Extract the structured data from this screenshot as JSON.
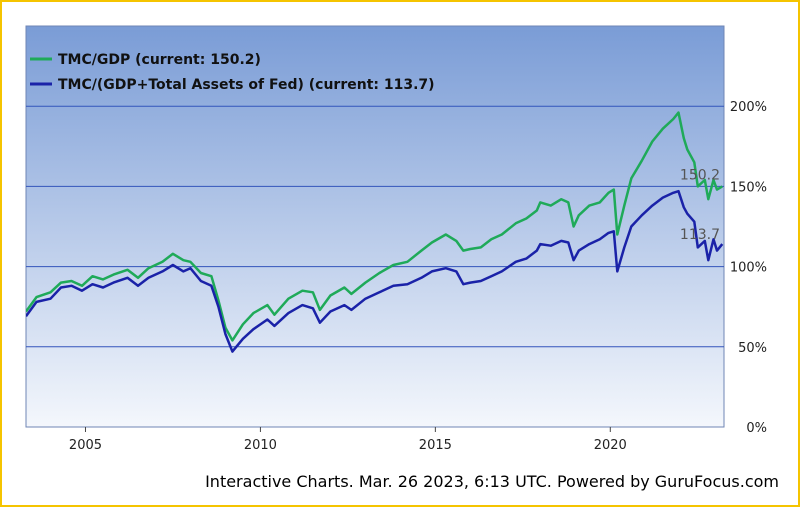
{
  "chart_data": {
    "type": "line",
    "credit": "Interactive Charts. Mar. 26 2023, 6:13 UTC. Powered by GuruFocus.com",
    "colors": {
      "tmc_gdp": "#1faa59",
      "tmc_gdp_fed": "#1a22a8",
      "gridline": "#3355bb",
      "plot_top": "#7a9cd6",
      "plot_bottom": "#f4f7fc",
      "border": "#f5c400"
    },
    "x_ticks": [
      2005,
      2010,
      2015,
      2020
    ],
    "y_ticks": [
      {
        "value": 0,
        "label": "0%"
      },
      {
        "value": 50,
        "label": "50%"
      },
      {
        "value": 100,
        "label": "100%"
      },
      {
        "value": 150,
        "label": "150%"
      },
      {
        "value": 200,
        "label": "200%"
      }
    ],
    "xlim": [
      2003.3,
      2023.25
    ],
    "ylim": [
      0,
      250
    ],
    "grid": true,
    "legend_position": "top-left",
    "series": [
      {
        "name": "TMC/GDP (current: 150.2)",
        "current": "150.2",
        "points": [
          [
            2003.3,
            72
          ],
          [
            2003.6,
            81
          ],
          [
            2004.0,
            84
          ],
          [
            2004.3,
            90
          ],
          [
            2004.6,
            91
          ],
          [
            2004.9,
            88
          ],
          [
            2005.2,
            94
          ],
          [
            2005.5,
            92
          ],
          [
            2005.8,
            95
          ],
          [
            2006.2,
            98
          ],
          [
            2006.5,
            93
          ],
          [
            2006.8,
            99
          ],
          [
            2007.2,
            103
          ],
          [
            2007.5,
            108
          ],
          [
            2007.8,
            104
          ],
          [
            2008.0,
            103
          ],
          [
            2008.3,
            96
          ],
          [
            2008.6,
            94
          ],
          [
            2008.8,
            79
          ],
          [
            2009.0,
            62
          ],
          [
            2009.2,
            54
          ],
          [
            2009.5,
            64
          ],
          [
            2009.8,
            71
          ],
          [
            2010.2,
            76
          ],
          [
            2010.4,
            70
          ],
          [
            2010.8,
            80
          ],
          [
            2011.2,
            85
          ],
          [
            2011.5,
            84
          ],
          [
            2011.7,
            73
          ],
          [
            2012.0,
            82
          ],
          [
            2012.4,
            87
          ],
          [
            2012.6,
            83
          ],
          [
            2013.0,
            90
          ],
          [
            2013.4,
            96
          ],
          [
            2013.8,
            101
          ],
          [
            2014.2,
            103
          ],
          [
            2014.6,
            110
          ],
          [
            2014.9,
            115
          ],
          [
            2015.3,
            120
          ],
          [
            2015.6,
            116
          ],
          [
            2015.8,
            110
          ],
          [
            2016.0,
            111
          ],
          [
            2016.3,
            112
          ],
          [
            2016.6,
            117
          ],
          [
            2016.9,
            120
          ],
          [
            2017.3,
            127
          ],
          [
            2017.6,
            130
          ],
          [
            2017.9,
            135
          ],
          [
            2018.0,
            140
          ],
          [
            2018.3,
            138
          ],
          [
            2018.6,
            142
          ],
          [
            2018.8,
            140
          ],
          [
            2018.95,
            125
          ],
          [
            2019.1,
            132
          ],
          [
            2019.4,
            138
          ],
          [
            2019.7,
            140
          ],
          [
            2019.95,
            146
          ],
          [
            2020.1,
            148
          ],
          [
            2020.2,
            120
          ],
          [
            2020.4,
            138
          ],
          [
            2020.6,
            155
          ],
          [
            2020.9,
            166
          ],
          [
            2021.2,
            178
          ],
          [
            2021.5,
            186
          ],
          [
            2021.8,
            192
          ],
          [
            2021.95,
            196
          ],
          [
            2022.1,
            180
          ],
          [
            2022.2,
            173
          ],
          [
            2022.4,
            165
          ],
          [
            2022.5,
            150
          ],
          [
            2022.7,
            154
          ],
          [
            2022.8,
            142
          ],
          [
            2022.95,
            154
          ],
          [
            2023.05,
            148
          ],
          [
            2023.2,
            150
          ]
        ]
      },
      {
        "name": "TMC/(GDP+Total Assets of Fed) (current: 113.7)",
        "current": "113.7",
        "points": [
          [
            2003.3,
            69
          ],
          [
            2003.6,
            78
          ],
          [
            2004.0,
            80
          ],
          [
            2004.3,
            87
          ],
          [
            2004.6,
            88
          ],
          [
            2004.9,
            85
          ],
          [
            2005.2,
            89
          ],
          [
            2005.5,
            87
          ],
          [
            2005.8,
            90
          ],
          [
            2006.2,
            93
          ],
          [
            2006.5,
            88
          ],
          [
            2006.8,
            93
          ],
          [
            2007.2,
            97
          ],
          [
            2007.5,
            101
          ],
          [
            2007.8,
            97
          ],
          [
            2008.0,
            99
          ],
          [
            2008.3,
            91
          ],
          [
            2008.6,
            88
          ],
          [
            2008.8,
            75
          ],
          [
            2009.0,
            58
          ],
          [
            2009.2,
            47
          ],
          [
            2009.5,
            55
          ],
          [
            2009.8,
            61
          ],
          [
            2010.2,
            67
          ],
          [
            2010.4,
            63
          ],
          [
            2010.8,
            71
          ],
          [
            2011.2,
            76
          ],
          [
            2011.5,
            74
          ],
          [
            2011.7,
            65
          ],
          [
            2012.0,
            72
          ],
          [
            2012.4,
            76
          ],
          [
            2012.6,
            73
          ],
          [
            2013.0,
            80
          ],
          [
            2013.4,
            84
          ],
          [
            2013.8,
            88
          ],
          [
            2014.2,
            89
          ],
          [
            2014.6,
            93
          ],
          [
            2014.9,
            97
          ],
          [
            2015.3,
            99
          ],
          [
            2015.6,
            97
          ],
          [
            2015.8,
            89
          ],
          [
            2016.0,
            90
          ],
          [
            2016.3,
            91
          ],
          [
            2016.6,
            94
          ],
          [
            2016.9,
            97
          ],
          [
            2017.3,
            103
          ],
          [
            2017.6,
            105
          ],
          [
            2017.9,
            110
          ],
          [
            2018.0,
            114
          ],
          [
            2018.3,
            113
          ],
          [
            2018.6,
            116
          ],
          [
            2018.8,
            115
          ],
          [
            2018.95,
            104
          ],
          [
            2019.1,
            110
          ],
          [
            2019.4,
            114
          ],
          [
            2019.7,
            117
          ],
          [
            2019.95,
            121
          ],
          [
            2020.1,
            122
          ],
          [
            2020.2,
            97
          ],
          [
            2020.4,
            112
          ],
          [
            2020.6,
            125
          ],
          [
            2020.9,
            132
          ],
          [
            2021.2,
            138
          ],
          [
            2021.5,
            143
          ],
          [
            2021.8,
            146
          ],
          [
            2021.95,
            147
          ],
          [
            2022.1,
            137
          ],
          [
            2022.2,
            133
          ],
          [
            2022.4,
            128
          ],
          [
            2022.5,
            112
          ],
          [
            2022.7,
            116
          ],
          [
            2022.8,
            104
          ],
          [
            2022.95,
            117
          ],
          [
            2023.05,
            110
          ],
          [
            2023.2,
            114
          ]
        ]
      }
    ]
  }
}
